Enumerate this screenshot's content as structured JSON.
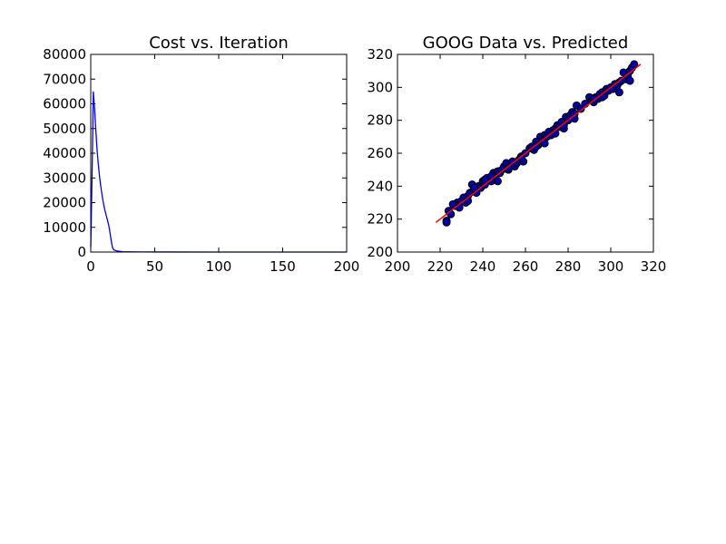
{
  "chart_data": [
    {
      "type": "line",
      "title": "Cost vs. Iteration",
      "xlabel": "",
      "ylabel": "",
      "xlim": [
        0,
        200
      ],
      "ylim": [
        0,
        80000
      ],
      "x_ticks": [
        0,
        50,
        100,
        150,
        200
      ],
      "y_ticks": [
        0,
        10000,
        20000,
        30000,
        40000,
        50000,
        60000,
        70000,
        80000
      ],
      "grid": false,
      "line_color": "#0000ff",
      "series": [
        {
          "x": [
            0,
            1,
            2,
            3,
            4,
            5,
            6,
            7,
            8,
            9,
            10,
            11,
            12,
            13,
            14,
            15,
            16,
            17,
            18,
            20,
            22,
            25,
            30,
            40,
            60,
            100,
            150,
            200
          ],
          "y": [
            2000,
            30000,
            65000,
            58000,
            49000,
            41000,
            35000,
            30000,
            26000,
            22500,
            19500,
            17000,
            15000,
            13000,
            11000,
            8000,
            4500,
            1800,
            900,
            500,
            300,
            150,
            80,
            40,
            20,
            10,
            5,
            2
          ]
        }
      ]
    },
    {
      "type": "scatter",
      "title": "GOOG Data vs. Predicted",
      "xlabel": "",
      "ylabel": "",
      "xlim": [
        200,
        320
      ],
      "ylim": [
        200,
        320
      ],
      "x_ticks": [
        200,
        220,
        240,
        260,
        280,
        300,
        320
      ],
      "y_ticks": [
        200,
        220,
        240,
        260,
        280,
        300,
        320
      ],
      "grid": false,
      "marker_color": "#0000aa",
      "fit_color": "#ff0000",
      "series": [
        {
          "x": [
            223,
            224,
            225,
            227,
            228,
            229,
            230,
            231,
            232,
            233,
            234,
            235,
            236,
            237,
            238,
            239,
            240,
            241,
            242,
            243,
            244,
            245,
            246,
            247,
            248,
            249,
            250,
            251,
            252,
            253,
            254,
            255,
            256,
            257,
            258,
            259,
            260,
            262,
            263,
            264,
            265,
            266,
            267,
            268,
            269,
            270,
            271,
            272,
            273,
            274,
            275,
            276,
            277,
            278,
            279,
            280,
            281,
            282,
            283,
            284,
            286,
            288,
            290,
            291,
            292,
            293,
            294,
            295,
            296,
            297,
            298,
            299,
            300,
            301,
            302,
            303,
            304,
            305,
            306,
            307,
            308,
            309,
            310,
            311,
            223,
            226,
            233,
            236,
            241,
            244,
            247,
            252,
            258,
            265,
            269,
            274,
            278,
            283,
            292,
            296,
            304,
            309
          ],
          "y": [
            219,
            225,
            223,
            228,
            230,
            227,
            231,
            233,
            230,
            234,
            236,
            241,
            238,
            236,
            240,
            239,
            243,
            241,
            245,
            244,
            243,
            248,
            246,
            249,
            248,
            250,
            252,
            254,
            250,
            253,
            255,
            252,
            254,
            256,
            258,
            255,
            260,
            263,
            264,
            262,
            267,
            265,
            270,
            268,
            271,
            270,
            273,
            271,
            274,
            275,
            277,
            276,
            279,
            275,
            282,
            280,
            283,
            285,
            284,
            289,
            287,
            290,
            294,
            292,
            291,
            294,
            293,
            296,
            297,
            295,
            299,
            298,
            300,
            299,
            302,
            301,
            303,
            304,
            309,
            305,
            307,
            310,
            312,
            314,
            218,
            229,
            231,
            239,
            244,
            246,
            243,
            251,
            257,
            264,
            266,
            272,
            277,
            281,
            293,
            294,
            297,
            304
          ]
        }
      ],
      "fit_line": {
        "x": [
          218,
          314
        ],
        "y": [
          218,
          314
        ]
      }
    }
  ]
}
